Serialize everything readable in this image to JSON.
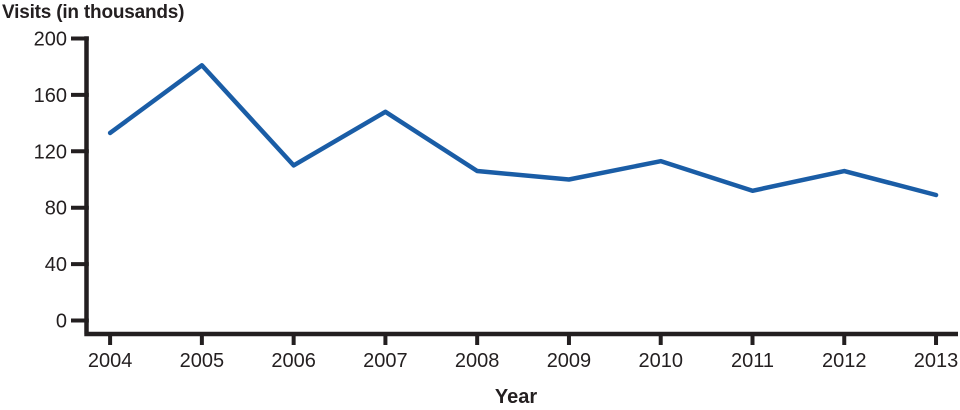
{
  "title": "Visits (in thousands)",
  "chart_data": {
    "type": "line",
    "title": "Visits (in thousands)",
    "xlabel": "Year",
    "ylabel": "Visits (in thousands)",
    "categories": [
      "2004",
      "2005",
      "2006",
      "2007",
      "2008",
      "2009",
      "2010",
      "2011",
      "2012",
      "2013"
    ],
    "series": [
      {
        "name": "Visits (in thousands)",
        "values": [
          133,
          181,
          110,
          148,
          106,
          100,
          113,
          92,
          106,
          89
        ]
      }
    ],
    "ylim": [
      0,
      200
    ],
    "y_ticks": [
      0,
      40,
      80,
      120,
      160,
      200
    ],
    "grid": false,
    "legend_position": "none",
    "line_color": "#1a5da6",
    "axis_color": "#231f20"
  }
}
